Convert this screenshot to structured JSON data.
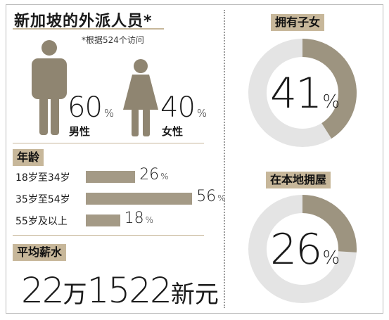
{
  "title": "新加坡的外派人员*",
  "note": "*根据524个访问",
  "gender": {
    "male": {
      "value": "60",
      "unit": "%",
      "label": "男性"
    },
    "female": {
      "value": "40",
      "unit": "%",
      "label": "女性"
    }
  },
  "age": {
    "heading": "年龄",
    "unit": "%",
    "rows": [
      {
        "label": "18岁至34岁",
        "value": "26"
      },
      {
        "label": "35岁至54岁",
        "value": "56"
      },
      {
        "label": "55岁及以上",
        "value": "18"
      }
    ]
  },
  "salary": {
    "heading": "平均薪水",
    "part1": "22",
    "unit1": "万",
    "part2": "1522",
    "unit2": "新元"
  },
  "children": {
    "heading": "拥有子女",
    "value": "41",
    "unit": "%"
  },
  "home": {
    "heading": "在本地拥屋",
    "value": "26",
    "unit": "%"
  },
  "colors": {
    "accent": "#c7b79a",
    "figure": "#8f8571",
    "bar": "#a49a86",
    "ring_fill": "#9d9480",
    "ring_track": "#e4e4e4"
  },
  "chart_data": [
    {
      "type": "bar",
      "title": "年龄",
      "categories": [
        "18岁至34岁",
        "35岁至54岁",
        "55岁及以上"
      ],
      "values": [
        26,
        56,
        18
      ]
    },
    {
      "type": "pie",
      "title": "拥有子女",
      "values": [
        41,
        59
      ]
    },
    {
      "type": "pie",
      "title": "在本地拥屋",
      "values": [
        26,
        74
      ]
    },
    {
      "type": "table",
      "title": "新加坡的外派人员*",
      "categories": [
        "男性",
        "女性"
      ],
      "values": [
        60,
        40
      ]
    }
  ]
}
